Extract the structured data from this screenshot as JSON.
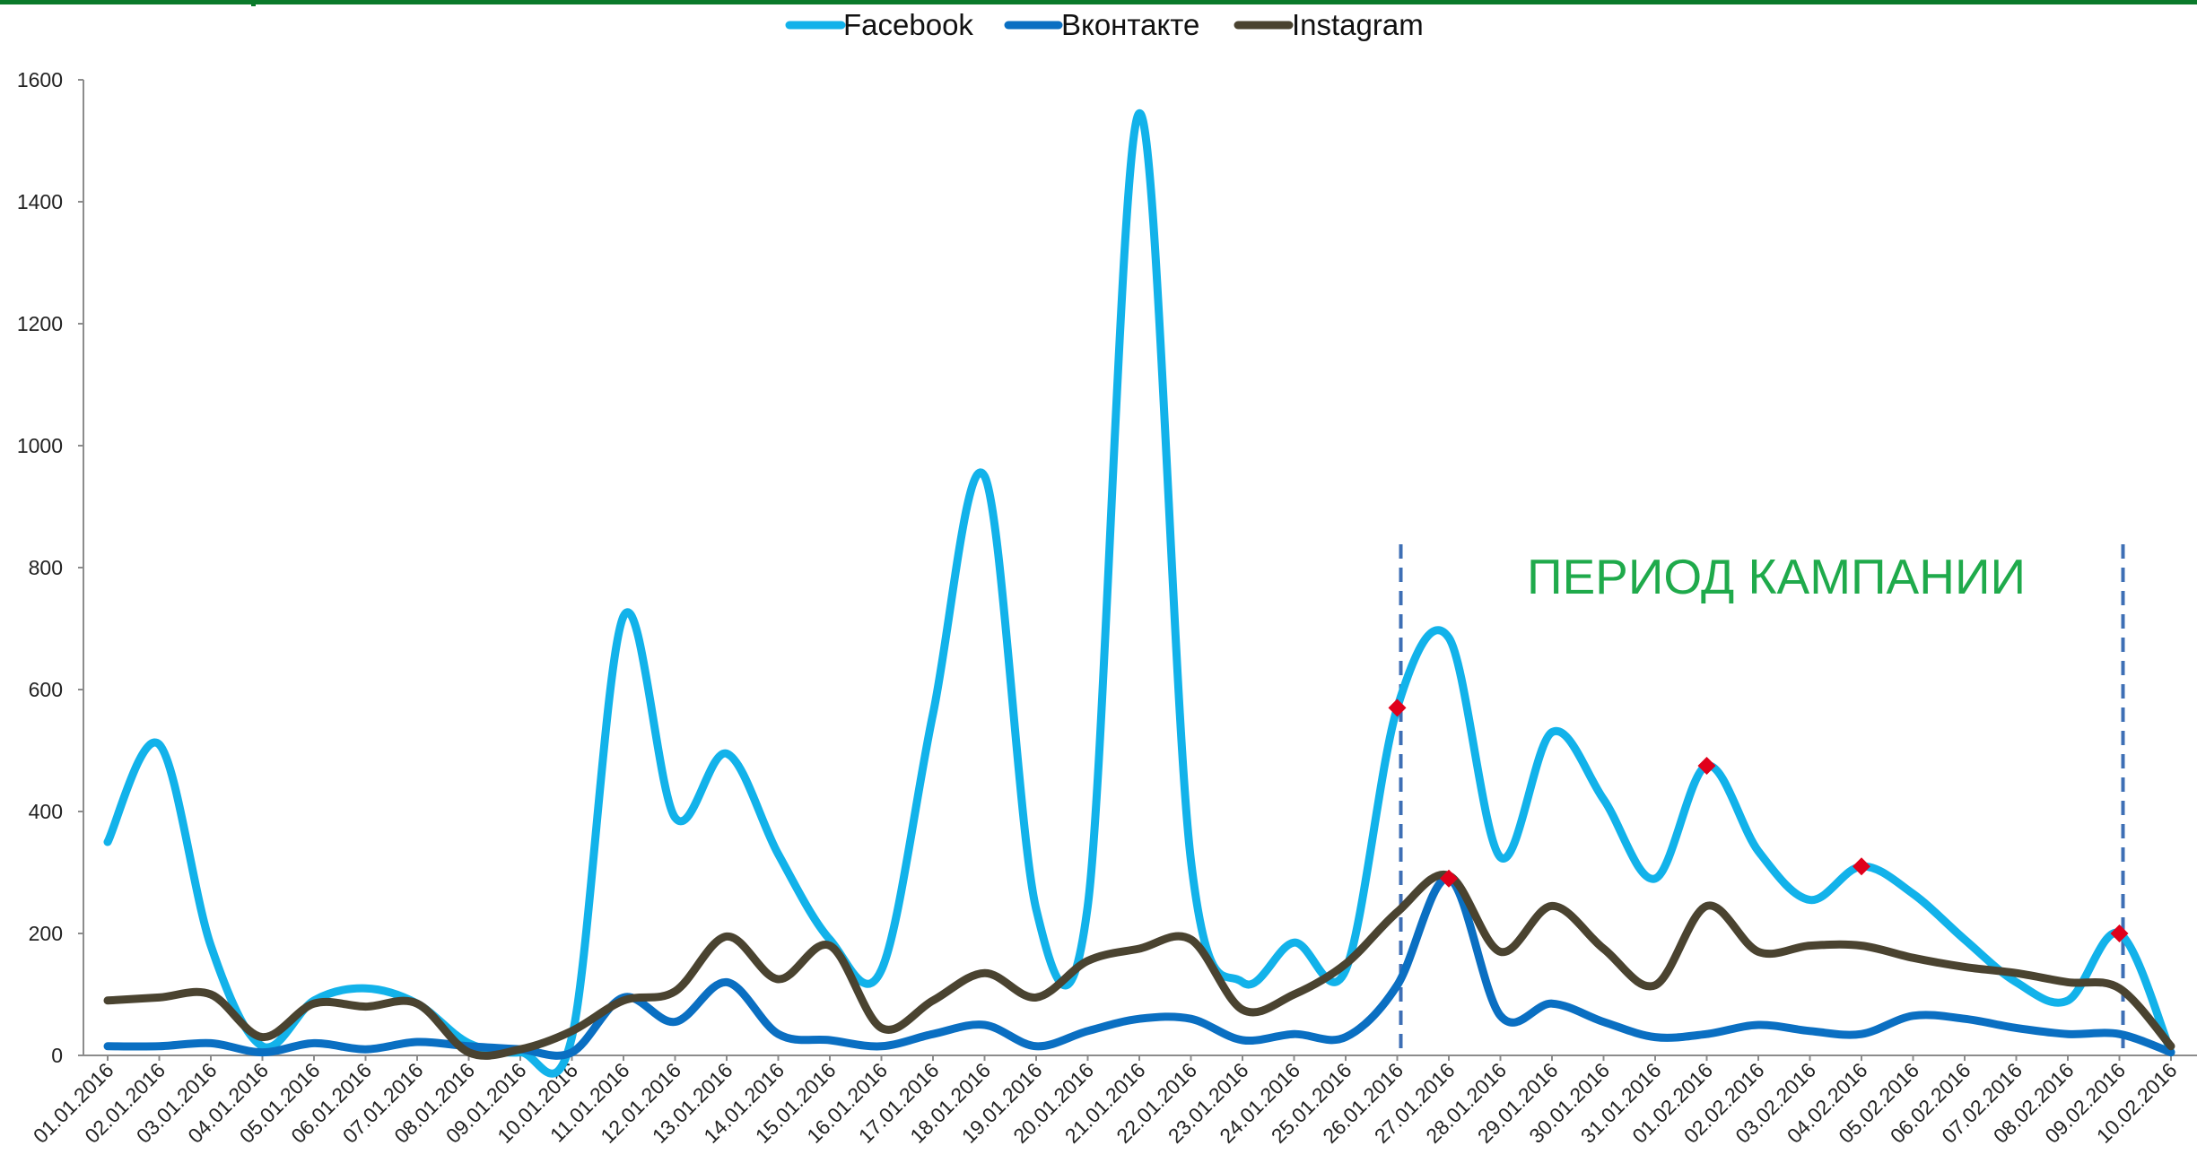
{
  "chart_data": {
    "type": "line",
    "title": "",
    "xlabel": "",
    "ylabel": "",
    "ylim": [
      0,
      1600
    ],
    "yticks": [
      0,
      200,
      400,
      600,
      800,
      1000,
      1200,
      1400,
      1600
    ],
    "legend_position": "top-center",
    "grid": false,
    "categories": [
      "01.01.2016",
      "02.01.2016",
      "03.01.2016",
      "04.01.2016",
      "05.01.2016",
      "06.01.2016",
      "07.01.2016",
      "08.01.2016",
      "09.01.2016",
      "10.01.2016",
      "11.01.2016",
      "12.01.2016",
      "13.01.2016",
      "14.01.2016",
      "15.01.2016",
      "16.01.2016",
      "17.01.2016",
      "18.01.2016",
      "19.01.2016",
      "20.01.2016",
      "21.01.2016",
      "22.01.2016",
      "23.01.2016",
      "24.01.2016",
      "25.01.2016",
      "26.01.2016",
      "27.01.2016",
      "28.01.2016",
      "29.01.2016",
      "30.01.2016",
      "31.01.2016",
      "01.02.2016",
      "02.02.2016",
      "03.02.2016",
      "04.02.2016",
      "05.02.2016",
      "06.02.2016",
      "07.02.2016",
      "08.02.2016",
      "09.02.2016",
      "10.02.2016"
    ],
    "series": [
      {
        "name": "Facebook",
        "color": "#12b2ea",
        "values": [
          350,
          510,
          180,
          15,
          90,
          110,
          85,
          20,
          5,
          30,
          720,
          390,
          495,
          330,
          190,
          140,
          560,
          950,
          240,
          245,
          1545,
          320,
          120,
          185,
          140,
          570,
          685,
          325,
          530,
          420,
          290,
          475,
          335,
          255,
          310,
          265,
          190,
          120,
          90,
          200,
          5
        ]
      },
      {
        "name": "Вконтакте",
        "color": "#0a6fc2",
        "values": [
          15,
          15,
          20,
          5,
          20,
          10,
          22,
          15,
          10,
          5,
          95,
          55,
          120,
          35,
          25,
          15,
          35,
          50,
          15,
          40,
          60,
          60,
          25,
          35,
          30,
          115,
          290,
          65,
          85,
          55,
          30,
          35,
          50,
          40,
          35,
          65,
          60,
          45,
          35,
          35,
          5
        ]
      },
      {
        "name": "Instagram",
        "color": "#4a4330",
        "values": [
          90,
          95,
          100,
          30,
          85,
          80,
          85,
          5,
          10,
          40,
          90,
          105,
          195,
          125,
          180,
          45,
          90,
          135,
          95,
          155,
          175,
          190,
          75,
          100,
          150,
          235,
          295,
          170,
          245,
          175,
          115,
          245,
          170,
          180,
          180,
          160,
          145,
          135,
          120,
          110,
          15
        ]
      }
    ],
    "markers": [
      {
        "x": "26.01.2016",
        "y": 570
      },
      {
        "x": "27.01.2016",
        "y": 290
      },
      {
        "x": "01.02.2016",
        "y": 475
      },
      {
        "x": "04.02.2016",
        "y": 310
      },
      {
        "x": "09.02.2016",
        "y": 200
      }
    ],
    "marker_color": "#e0001b",
    "campaign": {
      "label": "ПЕРИОД КАМПАНИИ",
      "start": "26.01.2016",
      "end": "09.02.2016",
      "label_color": "#1faa4b",
      "line_color": "#3e6fb5"
    },
    "header_bar_color": "#0a7a2a"
  }
}
